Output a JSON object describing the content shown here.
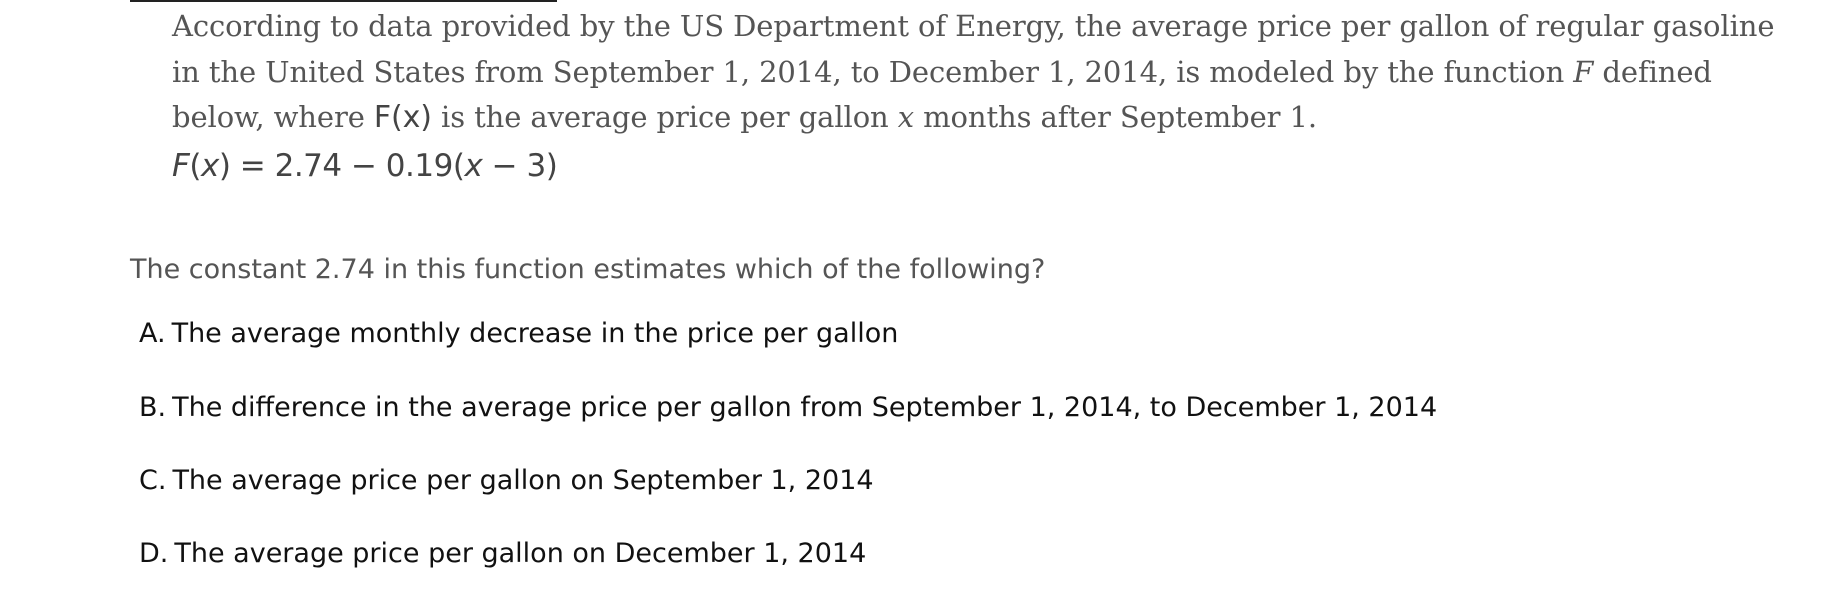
{
  "passage": {
    "line1": "According to data provided by the US Department of Energy, the average price per gallon of regular gasoline",
    "line2_a": "in the United States from September 1, 2014, to December 1, 2014, is modeled by the function ",
    "line2_var": "F",
    "line2_b": " defined",
    "line3_a": "below, where ",
    "line3_fx": "F(x)",
    "line3_b": " is the average price per gallon ",
    "line3_var": "x",
    "line3_c": " months after September 1."
  },
  "formula": {
    "lhs_f": "F",
    "lhs_paren_open": "(",
    "lhs_x": "x",
    "lhs_paren_close": ")",
    "rhs_a": " = 2.74 − 0.19(",
    "rhs_x": "x",
    "rhs_b": " − 3)"
  },
  "question": {
    "text": "The constant 2.74 in this function estimates which of the following?"
  },
  "choices": [
    {
      "letter": "A.",
      "text": "The average monthly decrease in the price per gallon"
    },
    {
      "letter": "B.",
      "text": "The difference in the average price per gallon from September 1, 2014, to December 1, 2014"
    },
    {
      "letter": "C.",
      "text": "The average price per gallon on September 1, 2014"
    },
    {
      "letter": "D.",
      "text": "The average price per gallon on December 1, 2014"
    }
  ]
}
